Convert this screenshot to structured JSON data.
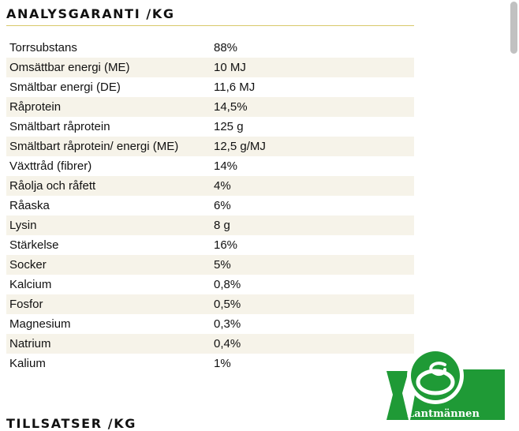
{
  "analysis": {
    "title": "ANALYSGARANTI /KG",
    "rows": [
      {
        "name": "Torrsubstans",
        "value": "88%"
      },
      {
        "name": "Omsättbar energi (ME)",
        "value": "10 MJ"
      },
      {
        "name": "Smältbar energi (DE)",
        "value": "11,6 MJ"
      },
      {
        "name": "Råprotein",
        "value": "14,5%"
      },
      {
        "name": "Smältbart råprotein",
        "value": "125 g"
      },
      {
        "name": "Smältbart råprotein/ energi (ME)",
        "value": "12,5 g/MJ"
      },
      {
        "name": "Växttråd (fibrer)",
        "value": "14%"
      },
      {
        "name": "Råolja och råfett",
        "value": "4%"
      },
      {
        "name": "Råaska",
        "value": "6%"
      },
      {
        "name": "Lysin",
        "value": "8 g"
      },
      {
        "name": "Stärkelse",
        "value": "16%"
      },
      {
        "name": "Socker",
        "value": "5%"
      },
      {
        "name": "Kalcium",
        "value": "0,8%"
      },
      {
        "name": "Fosfor",
        "value": "0,5%"
      },
      {
        "name": "Magnesium",
        "value": "0,3%"
      },
      {
        "name": "Natrium",
        "value": "0,4%"
      },
      {
        "name": "Kalium",
        "value": "1%"
      }
    ]
  },
  "additives": {
    "title": "TILLSATSER /KG"
  },
  "logo": {
    "text": "Lantmännen",
    "color": "#1f9a36",
    "icon": "lantmannen-logo"
  },
  "colors": {
    "row_stripe": "#f6f3e9",
    "rule": "#d9c96a"
  }
}
